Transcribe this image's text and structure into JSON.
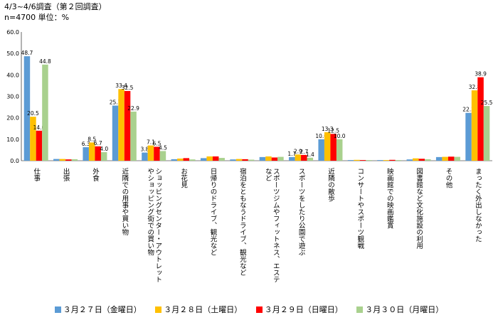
{
  "header": {
    "line1": "4/3~4/6調査（第２回調査）",
    "line2": "n=4700  単位：%"
  },
  "chart_data": {
    "type": "bar",
    "ylim": [
      0,
      60
    ],
    "yticks": [
      "0.0",
      "10.0",
      "20.0",
      "30.0",
      "40.0",
      "50.0",
      "60.0"
    ],
    "categories": [
      [
        "仕事"
      ],
      [
        "出張"
      ],
      [
        "外食"
      ],
      [
        "近隣での用事や買い物"
      ],
      [
        "ショッピングセンター・アウトレット",
        "やショッピング街での買い物"
      ],
      [
        "お花見"
      ],
      [
        "日帰りのドライブ、観光など"
      ],
      [
        "宿泊をともなうドライブ、観光など"
      ],
      [
        "スポーツジムやフィットネス、エステ",
        "など"
      ],
      [
        "スポーツをしたり公園で遊ぶ"
      ],
      [
        "近隣の散歩"
      ],
      [
        "コンサートやスポーツ観戦"
      ],
      [
        "映画館での映画鑑賞"
      ],
      [
        "図書館など文化施設の利用"
      ],
      [
        "その他"
      ],
      [
        "まったく外出しなかった"
      ]
    ],
    "series": [
      {
        "name": "３月２７日（金曜日）",
        "color": "#5B9BD5",
        "values": [
          48.7,
          0.8,
          6.3,
          25.7,
          3.8,
          0.7,
          1.2,
          0.6,
          1.7,
          1.7,
          10.0,
          0.3,
          0.3,
          0.6,
          1.7,
          22.3
        ],
        "labels": [
          "48.7",
          "",
          "6.3",
          "25.7",
          "3.8",
          "",
          "",
          "",
          "",
          "1.7",
          "10.0",
          "",
          "",
          "",
          "",
          "22.3"
        ]
      },
      {
        "name": "３月２８日（土曜日）",
        "color": "#FFC000",
        "values": [
          20.5,
          0.8,
          8.5,
          33.4,
          7.1,
          1.0,
          2.0,
          0.8,
          2.0,
          2.9,
          13.3,
          0.4,
          0.3,
          1.1,
          1.8,
          32.8
        ],
        "labels": [
          "20.5",
          "",
          "8.5",
          "33.4",
          "7.1",
          "",
          "",
          "",
          "",
          "2.9",
          "13.3",
          "",
          "",
          "",
          "",
          "32.8"
        ]
      },
      {
        "name": "３月２９日（日曜日）",
        "color": "#FF0000",
        "values": [
          14.0,
          0.6,
          6.7,
          32.5,
          6.5,
          1.2,
          2.0,
          0.7,
          1.5,
          2.7,
          12.5,
          0.3,
          0.4,
          0.9,
          1.9,
          38.9
        ],
        "labels": [
          "14.0",
          "",
          "6.7",
          "32.5",
          "6.5",
          "",
          "",
          "",
          "",
          "2.7",
          "12.5",
          "",
          "",
          "",
          "",
          "38.9"
        ]
      },
      {
        "name": "３月３０日（月曜日）",
        "color": "#A9D18E",
        "values": [
          44.8,
          0.7,
          4.0,
          22.9,
          4.5,
          0.6,
          1.3,
          0.5,
          1.8,
          1.4,
          10.0,
          0.3,
          0.3,
          0.7,
          1.8,
          25.5
        ],
        "labels": [
          "44.8",
          "",
          "4.0",
          "22.9",
          "4.5",
          "",
          "",
          "",
          "",
          "1.4",
          "10.0",
          "",
          "",
          "",
          "",
          "25.5"
        ]
      }
    ]
  }
}
